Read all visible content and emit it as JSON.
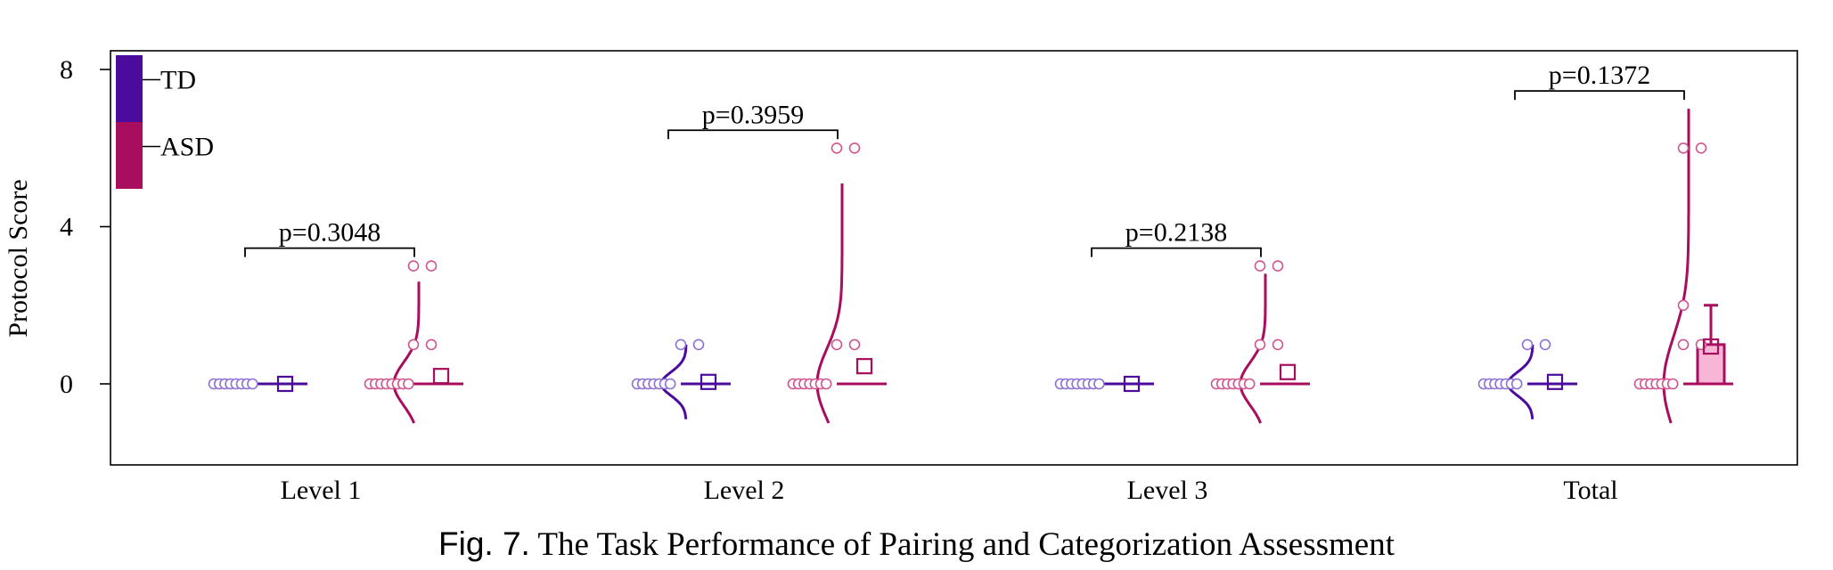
{
  "chart_data": {
    "type": "violin-scatter",
    "ylabel": "Protocol Score",
    "yticks": [
      0,
      4,
      8
    ],
    "ylim": [
      -2,
      8.5
    ],
    "categories": [
      "Level 1",
      "Level 2",
      "Level 3",
      "Total"
    ],
    "legend": {
      "placement": "top-left",
      "entries": [
        {
          "name": "TD",
          "color": "#4B0B9C"
        },
        {
          "name": "ASD",
          "color": "#A80D5E"
        }
      ]
    },
    "colors": {
      "td": "#4B0B9C",
      "asd": "#A80D5E",
      "td_point": "#8C72D4",
      "asd_point": "#D0568E",
      "asd_box_fill": "#F8B6D6"
    },
    "groups": [
      {
        "category": "Level 1",
        "p_value": "p=0.3048",
        "td": {
          "points": [
            0,
            0,
            0,
            0,
            0,
            0,
            0,
            0
          ],
          "mean": 0.0,
          "density": {
            "range": [
              0,
              0
            ],
            "sd": 0
          }
        },
        "asd": {
          "points": [
            0,
            0,
            0,
            0,
            0,
            0,
            0,
            0,
            1,
            1,
            3,
            3
          ],
          "mean": 0.2,
          "density": {
            "range": [
              -1,
              2.6
            ],
            "sd": 0.55
          }
        }
      },
      {
        "category": "Level 2",
        "p_value": "p=0.3959",
        "td": {
          "points": [
            0,
            0,
            0,
            0,
            0,
            0,
            0,
            1,
            1
          ],
          "mean": 0.05,
          "density": {
            "range": [
              -0.9,
              1
            ],
            "sd": 0.3
          }
        },
        "asd": {
          "points": [
            0,
            0,
            0,
            0,
            0,
            0,
            0,
            1,
            1,
            6,
            6
          ],
          "mean": 0.45,
          "density": {
            "range": [
              -1,
              5.1
            ],
            "sd": 0.9
          }
        }
      },
      {
        "category": "Level 3",
        "p_value": "p=0.2138",
        "td": {
          "points": [
            0,
            0,
            0,
            0,
            0,
            0,
            0,
            0
          ],
          "mean": 0.0,
          "density": {
            "range": [
              0,
              0
            ],
            "sd": 0
          }
        },
        "asd": {
          "points": [
            0,
            0,
            0,
            0,
            0,
            0,
            0,
            1,
            1,
            3,
            3
          ],
          "mean": 0.3,
          "density": {
            "range": [
              -1,
              2.8
            ],
            "sd": 0.55
          }
        }
      },
      {
        "category": "Total",
        "p_value": "p=0.1372",
        "td": {
          "points": [
            0,
            0,
            0,
            0,
            0,
            0,
            0,
            1,
            1
          ],
          "mean": 0.05,
          "density": {
            "range": [
              -0.9,
              1
            ],
            "sd": 0.3
          }
        },
        "asd": {
          "points": [
            0,
            0,
            0,
            0,
            0,
            0,
            0,
            1,
            1,
            2,
            6,
            6
          ],
          "mean": 0.95,
          "density": {
            "range": [
              -1,
              7
            ],
            "sd": 1.2
          },
          "box": {
            "q1": 0,
            "q3": 1,
            "whisker_high": 2
          }
        }
      }
    ]
  },
  "caption": {
    "label": "Fig. 7.",
    "text": " The Task Performance of Pairing and Categorization Assessment"
  }
}
